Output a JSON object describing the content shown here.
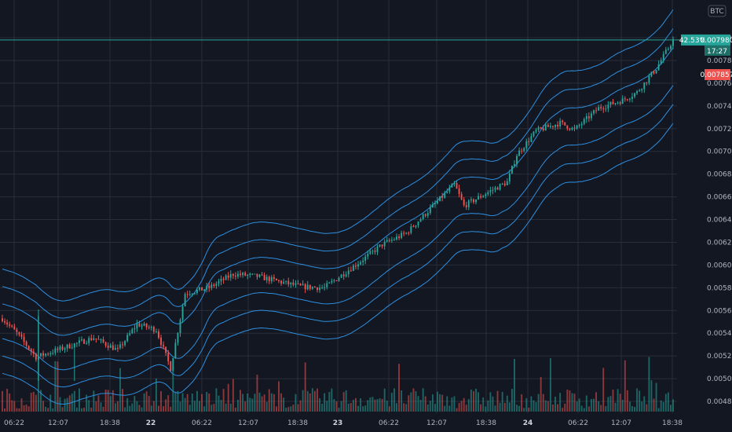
{
  "chart_data": {
    "type": "candlestick",
    "currency_badge": "BTC",
    "y_axis": {
      "range": [
        0.00472,
        0.00806
      ],
      "tick_labels": [
        "0.008000",
        "0.007800",
        "0.007600",
        "0.007400",
        "0.007200",
        "0.007000",
        "0.006800",
        "0.006600",
        "0.006400",
        "0.006200",
        "0.006000",
        "0.005800",
        "0.005600",
        "0.005400",
        "0.005200",
        "0.005000",
        "0.004800"
      ],
      "tick_values": [
        0.008,
        0.0078,
        0.0076,
        0.0074,
        0.0072,
        0.007,
        0.0068,
        0.0066,
        0.0064,
        0.0062,
        0.006,
        0.0058,
        0.0056,
        0.0054,
        0.0052,
        0.005,
        0.0048
      ]
    },
    "x_axis": {
      "tick_labels": [
        "06:22",
        "12:07",
        "18:38",
        "22",
        "06:22",
        "12:07",
        "18:38",
        "23",
        "06:22",
        "12:07",
        "18:38",
        "24",
        "06:22",
        "12:07",
        "18:38"
      ],
      "bold_labels": [
        "22",
        "23",
        "24"
      ]
    },
    "last_price": {
      "change_label": "42.53%",
      "price_label": "0.007980",
      "countdown_label": "17:27",
      "value": 0.00798
    },
    "reference_price": {
      "label": "0.007857",
      "value": 0.007857
    },
    "colors": {
      "background": "#131722",
      "grid": "#2a2e39",
      "up": "#26a69a",
      "down": "#ef5350",
      "bands": "#2d8fe0",
      "last_price": "#26a69a",
      "reference_price": "#ef5350",
      "axis_text": "#b2b5be"
    },
    "series_trend": {
      "points": [
        [
          0,
          0.00553
        ],
        [
          6,
          0.0054
        ],
        [
          14,
          0.00519
        ],
        [
          24,
          0.00526
        ],
        [
          38,
          0.00536
        ],
        [
          48,
          0.00525
        ],
        [
          56,
          0.00548
        ],
        [
          64,
          0.00543
        ],
        [
          70,
          0.00509
        ],
        [
          76,
          0.00575
        ],
        [
          86,
          0.0058
        ],
        [
          96,
          0.00592
        ],
        [
          106,
          0.0059
        ],
        [
          116,
          0.00585
        ],
        [
          124,
          0.00581
        ],
        [
          134,
          0.0058
        ],
        [
          150,
          0.00605
        ],
        [
          158,
          0.00618
        ],
        [
          168,
          0.00628
        ],
        [
          182,
          0.00658
        ],
        [
          188,
          0.00671
        ],
        [
          192,
          0.00652
        ],
        [
          202,
          0.00664
        ],
        [
          210,
          0.00673
        ],
        [
          214,
          0.00697
        ],
        [
          222,
          0.00718
        ],
        [
          232,
          0.00725
        ],
        [
          238,
          0.00719
        ],
        [
          248,
          0.00738
        ],
        [
          258,
          0.00745
        ],
        [
          264,
          0.00752
        ],
        [
          272,
          0.00773
        ],
        [
          279,
          0.00798
        ]
      ],
      "candle_count": 280
    },
    "bands": {
      "offsets": [
        0.00036,
        0.00024,
        0.00012,
        -0.00012,
        -0.00024,
        -0.00036
      ],
      "type": "envelope"
    }
  }
}
